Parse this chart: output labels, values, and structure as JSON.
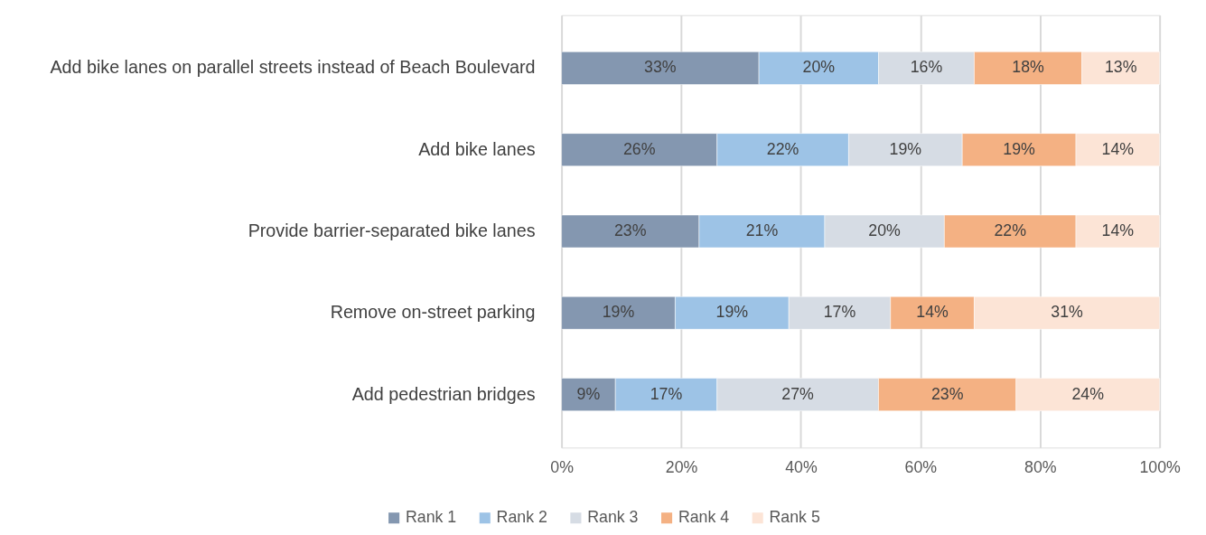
{
  "chart_data": {
    "type": "bar",
    "orientation": "horizontal",
    "stacked": true,
    "categories": [
      "Add bike lanes on parallel streets instead of Beach Boulevard",
      "Add bike lanes",
      "Provide barrier-separated bike lanes",
      "Remove on-street parking",
      "Add pedestrian bridges"
    ],
    "series": [
      {
        "name": "Rank 1",
        "color": "#8497b0",
        "values": [
          33,
          26,
          23,
          19,
          9
        ],
        "value_labels": [
          "33%",
          "26%",
          "23%",
          "19%",
          "9%"
        ]
      },
      {
        "name": "Rank 2",
        "color": "#9dc3e6",
        "values": [
          20,
          22,
          21,
          19,
          17
        ],
        "value_labels": [
          "20%",
          "22%",
          "21%",
          "19%",
          "17%"
        ]
      },
      {
        "name": "Rank 3",
        "color": "#d6dce4",
        "values": [
          16,
          19,
          20,
          17,
          27
        ],
        "value_labels": [
          "16%",
          "19%",
          "20%",
          "17%",
          "27%"
        ]
      },
      {
        "name": "Rank 4",
        "color": "#f4b183",
        "values": [
          18,
          19,
          22,
          14,
          23
        ],
        "value_labels": [
          "18%",
          "19%",
          "22%",
          "14%",
          "23%"
        ]
      },
      {
        "name": "Rank 5",
        "color": "#fce4d6",
        "values": [
          13,
          14,
          14,
          31,
          24
        ],
        "value_labels": [
          "13%",
          "14%",
          "14%",
          "31%",
          "24%"
        ]
      }
    ],
    "xlim": [
      0,
      100
    ],
    "xticks": [
      {
        "value": 0,
        "label": "0%"
      },
      {
        "value": 20,
        "label": "20%"
      },
      {
        "value": 40,
        "label": "40%"
      },
      {
        "value": 60,
        "label": "60%"
      },
      {
        "value": 80,
        "label": "80%"
      },
      {
        "value": 100,
        "label": "100%"
      }
    ],
    "grid": "x",
    "legend": "bottom"
  }
}
